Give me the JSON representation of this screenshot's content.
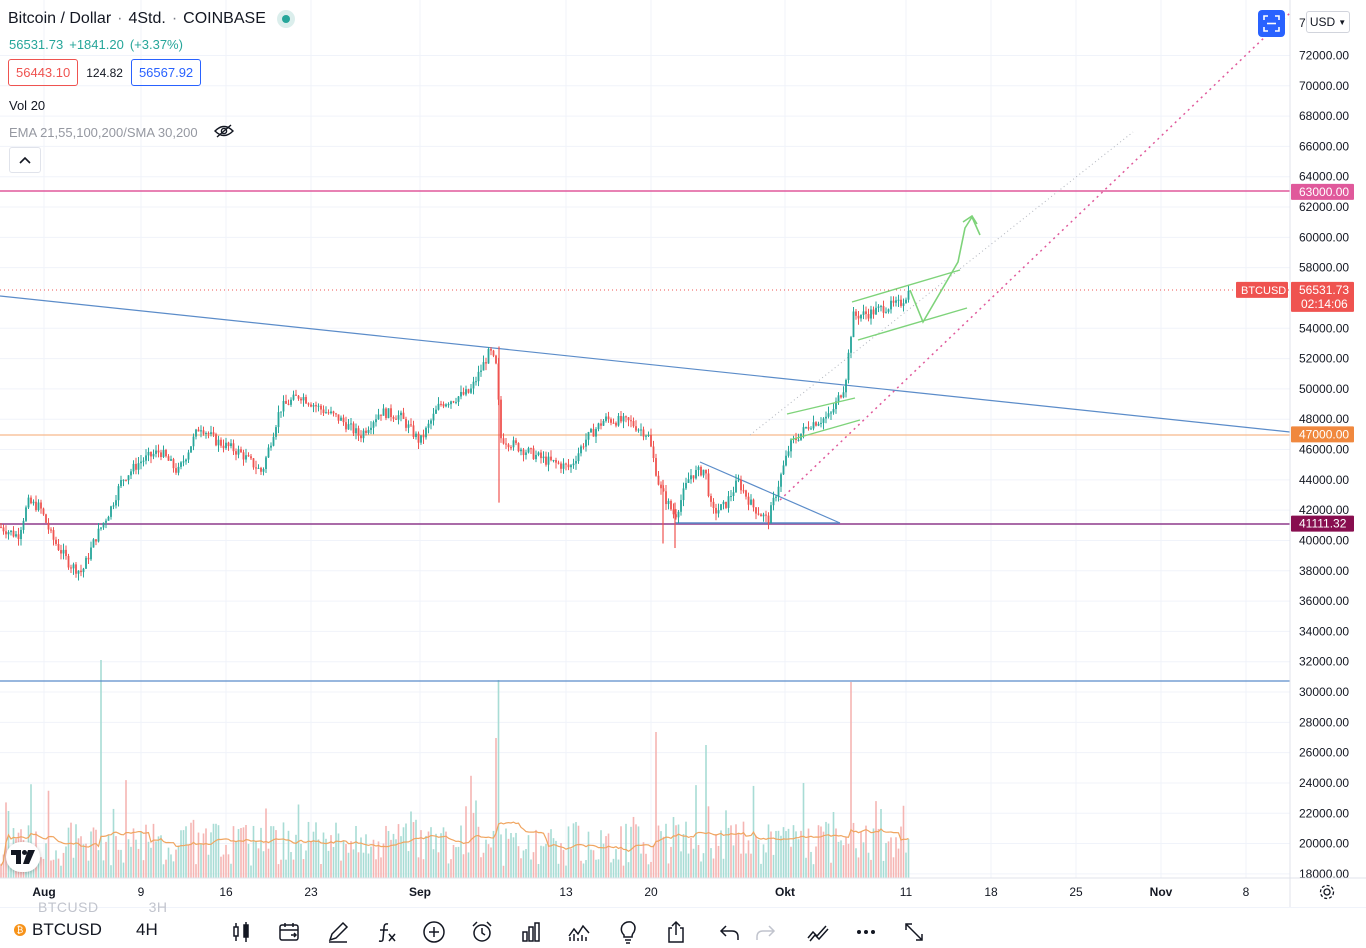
{
  "header": {
    "title": "Bitcoin / Dollar",
    "interval": "4Std.",
    "exchange": "COINBASE",
    "separator": "·"
  },
  "quote": {
    "last": "56531.73",
    "change": "+1841.20",
    "change_pct": "(+3.37%)"
  },
  "bid_ask": {
    "bid": "56443.10",
    "spread": "124.82",
    "ask": "56567.92"
  },
  "indicators": {
    "volume_label": "Vol",
    "volume_period": "20",
    "ema_label": "EMA 21,55,100,200/SMA 30,200"
  },
  "price_axis": {
    "currency": "USD",
    "top_clipped": "7",
    "ticks": [
      "72000.00",
      "70000.00",
      "68000.00",
      "66000.00",
      "64000.00",
      "62000.00",
      "60000.00",
      "58000.00",
      "54000.00",
      "52000.00",
      "50000.00",
      "48000.00",
      "46000.00",
      "44000.00",
      "42000.00",
      "40000.00",
      "38000.00",
      "36000.00",
      "34000.00",
      "32000.00",
      "30000.00",
      "28000.00",
      "26000.00",
      "24000.00",
      "22000.00",
      "20000.00",
      "18000.00"
    ],
    "badges": [
      {
        "value": "63000.00",
        "color": "#e0599b"
      },
      {
        "value": "56531.73",
        "sub": "02:14:06",
        "color": "#ef5350",
        "tag": "BTCUSD"
      },
      {
        "value": "47000.00",
        "color": "#f0883e"
      },
      {
        "value": "41111.32",
        "color": "#880e4f"
      }
    ]
  },
  "time_axis": {
    "labels": [
      "Aug",
      "9",
      "16",
      "23",
      "Sep",
      "13",
      "20",
      "Okt",
      "11",
      "18",
      "25",
      "Nov",
      "8"
    ]
  },
  "colors": {
    "up": "#26a69a",
    "down": "#ef5350",
    "trendline": "#5b8cc9",
    "drawing_green": "#7ed37a",
    "pink": "#e0599b",
    "orange": "#f0883e",
    "support": "#8e3a8c"
  },
  "toolbar": {
    "symbol": "BTCUSD",
    "symbol_ghost": "BTCUSD",
    "interval_ghost": "3H",
    "interval": "4H",
    "icons": [
      "candles-icon",
      "calendar-icon",
      "pen-icon",
      "function-icon",
      "plus-circle-icon",
      "alarm-icon",
      "bar-chart-icon",
      "indicator-icon",
      "lightbulb-icon",
      "share-icon",
      "undo-icon",
      "redo-icon",
      "drawing-sync-icon",
      "more-icon",
      "expand-icon"
    ]
  }
}
